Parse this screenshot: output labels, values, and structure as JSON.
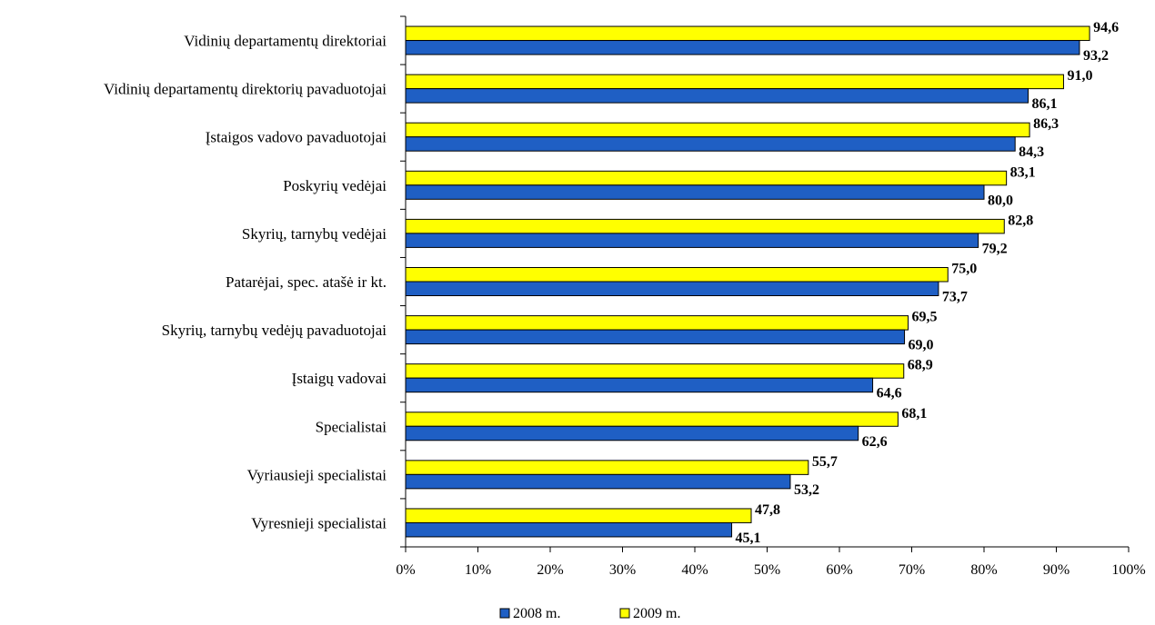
{
  "chart_data": {
    "type": "bar",
    "orientation": "horizontal",
    "title": "",
    "xlabel": "",
    "ylabel": "",
    "xlim": [
      0,
      100
    ],
    "x_ticks": [
      0,
      10,
      20,
      30,
      40,
      50,
      60,
      70,
      80,
      90,
      100
    ],
    "x_tick_labels": [
      "0%",
      "10%",
      "20%",
      "30%",
      "40%",
      "50%",
      "60%",
      "70%",
      "80%",
      "90%",
      "100%"
    ],
    "grid": false,
    "legend_position": "bottom",
    "categories": [
      "Vidinių departamentų direktoriai",
      "Vidinių departamentų direktorių pavaduotojai",
      "Įstaigos vadovo pavaduotojai",
      "Poskyrių vedėjai",
      "Skyrių, tarnybų vedėjai",
      "Patarėjai, spec. atašė ir kt.",
      "Skyrių, tarnybų vedėjų pavaduotojai",
      "Įstaigų vadovai",
      "Specialistai",
      "Vyriausieji specialistai",
      "Vyresnieji specialistai"
    ],
    "series": [
      {
        "name": "2009 m.",
        "color": "#FFFF00",
        "values": [
          94.6,
          91.0,
          86.3,
          83.1,
          82.8,
          75.0,
          69.5,
          68.9,
          68.1,
          55.7,
          47.8
        ],
        "labels": [
          "94,6",
          "91,0",
          "86,3",
          "83,1",
          "82,8",
          "75,0",
          "69,5",
          "68,9",
          "68,1",
          "55,7",
          "47,8"
        ]
      },
      {
        "name": "2008 m.",
        "color": "#1F5FC4",
        "values": [
          93.2,
          86.1,
          84.3,
          80.0,
          79.2,
          73.7,
          69.0,
          64.6,
          62.6,
          53.2,
          45.1
        ],
        "labels": [
          "93,2",
          "86,1",
          "84,3",
          "80,0",
          "79,2",
          "73,7",
          "69,0",
          "64,6",
          "62,6",
          "53,2",
          "45,1"
        ]
      }
    ],
    "legend": [
      {
        "name": "2008 m.",
        "color": "#1F5FC4"
      },
      {
        "name": "2009 m.",
        "color": "#FFFF00"
      }
    ]
  }
}
